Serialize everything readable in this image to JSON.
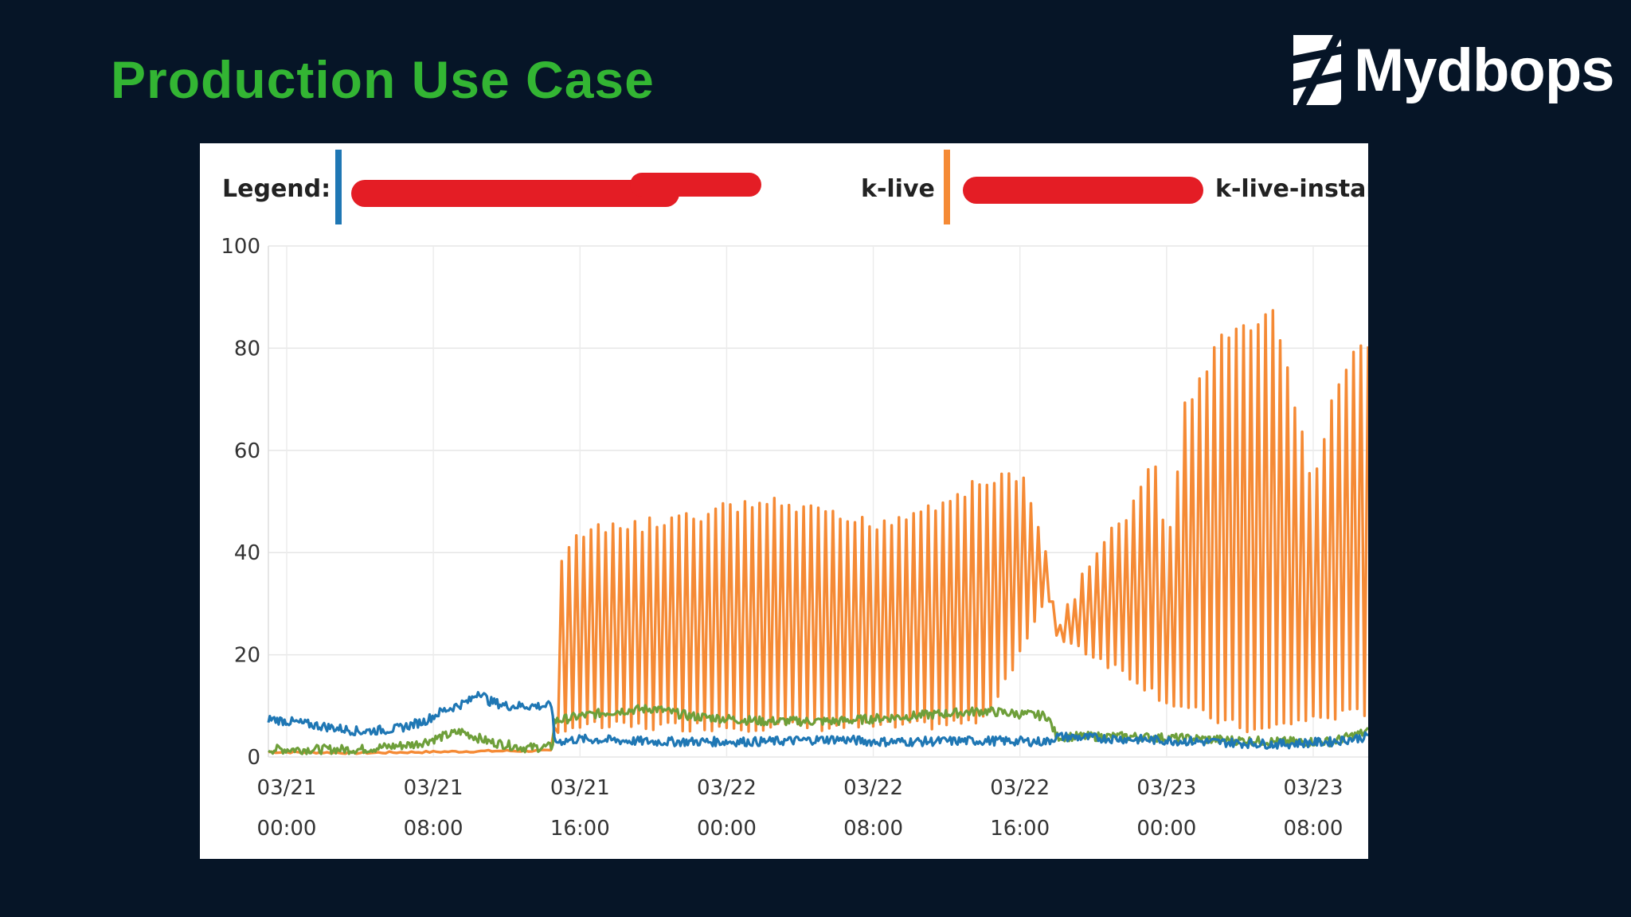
{
  "slide": {
    "title": "Production Use Case"
  },
  "brand": {
    "name": "Mydbops"
  },
  "chart_data": {
    "type": "line",
    "legend_label": "Legend:",
    "legend": [
      {
        "name": "k-live",
        "color": "#1f77b4"
      },
      {
        "name": "k-live-instan",
        "color": "#f58a35"
      }
    ],
    "ylim": [
      0,
      100
    ],
    "yticks": [
      "100",
      "80",
      "60",
      "40",
      "20",
      "0"
    ],
    "xtick_dates": [
      "03/21",
      "03/21",
      "03/21",
      "03/22",
      "03/22",
      "03/22",
      "03/23",
      "03/23"
    ],
    "xtick_times": [
      "00:00",
      "08:00",
      "16:00",
      "00:00",
      "08:00",
      "16:00",
      "00:00",
      "08:00"
    ],
    "x_range_hours": [
      -1,
      59
    ],
    "grid": true,
    "colors": {
      "blue": "#1f77b4",
      "orange": "#f58a35",
      "green": "#6e9f3a"
    },
    "series": [
      {
        "color": "orange",
        "points": [
          [
            -1,
            1.0
          ],
          [
            4,
            0.8
          ],
          [
            8,
            1.0
          ],
          [
            12,
            1.2
          ],
          [
            14.5,
            1.2
          ],
          [
            14.6,
            8
          ],
          [
            15,
            40
          ],
          [
            16,
            45
          ],
          [
            18,
            46
          ],
          [
            20,
            47
          ],
          [
            22,
            48
          ],
          [
            24,
            50
          ],
          [
            26,
            51
          ],
          [
            28,
            50
          ],
          [
            30,
            48
          ],
          [
            32,
            47
          ],
          [
            34,
            49
          ],
          [
            36,
            52
          ],
          [
            38,
            55
          ],
          [
            40,
            57
          ],
          [
            41.5,
            40
          ],
          [
            42,
            27
          ],
          [
            44,
            40
          ],
          [
            46,
            50
          ],
          [
            47.5,
            60
          ],
          [
            48,
            40
          ],
          [
            49,
            70
          ],
          [
            51,
            83
          ],
          [
            53,
            87
          ],
          [
            54,
            88
          ],
          [
            55,
            70
          ],
          [
            56,
            55
          ],
          [
            57,
            70
          ],
          [
            58,
            80
          ],
          [
            59,
            83
          ]
        ],
        "troughs": [
          [
            -1,
            1.0
          ],
          [
            4,
            0.8
          ],
          [
            8,
            1.0
          ],
          [
            12,
            1.2
          ],
          [
            14.5,
            1.2
          ],
          [
            15,
            5
          ],
          [
            20,
            5
          ],
          [
            26,
            5
          ],
          [
            34,
            5
          ],
          [
            38,
            6
          ],
          [
            41.5,
            30
          ],
          [
            42,
            23
          ],
          [
            46,
            15
          ],
          [
            48,
            10
          ],
          [
            51,
            6
          ],
          [
            53,
            4
          ],
          [
            55,
            6
          ],
          [
            57,
            7
          ],
          [
            59,
            8
          ]
        ]
      },
      {
        "color": "green",
        "points": [
          [
            -1,
            1.5
          ],
          [
            4,
            1.5
          ],
          [
            7,
            2.5
          ],
          [
            8.5,
            4
          ],
          [
            9.5,
            5
          ],
          [
            11,
            3
          ],
          [
            13,
            1.8
          ],
          [
            14.5,
            2
          ],
          [
            14.6,
            7
          ],
          [
            16,
            8
          ],
          [
            18,
            9
          ],
          [
            20,
            9.5
          ],
          [
            22,
            8
          ],
          [
            26,
            7
          ],
          [
            30,
            7
          ],
          [
            34,
            8
          ],
          [
            38,
            9
          ],
          [
            41.5,
            8
          ],
          [
            42,
            4
          ],
          [
            46,
            4
          ],
          [
            50,
            3.5
          ],
          [
            54,
            3
          ],
          [
            57,
            3
          ],
          [
            59,
            5
          ]
        ]
      },
      {
        "color": "blue",
        "points": [
          [
            -1,
            7.5
          ],
          [
            1,
            6.5
          ],
          [
            4,
            5
          ],
          [
            6,
            5.5
          ],
          [
            7.5,
            7
          ],
          [
            8.5,
            9
          ],
          [
            10,
            11
          ],
          [
            10.5,
            13
          ],
          [
            11,
            11
          ],
          [
            12,
            10
          ],
          [
            13,
            10
          ],
          [
            14.5,
            10
          ],
          [
            14.6,
            3
          ],
          [
            16,
            3.5
          ],
          [
            20,
            3
          ],
          [
            26,
            3
          ],
          [
            30,
            3.5
          ],
          [
            32,
            3
          ],
          [
            34,
            3
          ],
          [
            38,
            3.2
          ],
          [
            41.5,
            3
          ],
          [
            42,
            4
          ],
          [
            46,
            3.5
          ],
          [
            50,
            3
          ],
          [
            54,
            2.5
          ],
          [
            57,
            3
          ],
          [
            59,
            4
          ]
        ]
      }
    ]
  }
}
